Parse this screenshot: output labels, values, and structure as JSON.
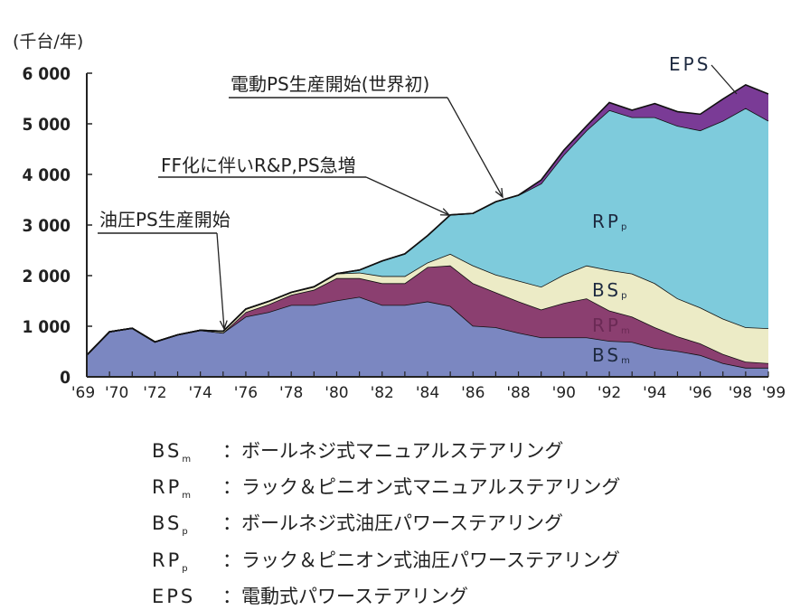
{
  "chart_data": {
    "type": "area",
    "stacked": true,
    "unit_label": "(千台/年)",
    "xlabel": "",
    "ylabel": "",
    "ylim": [
      0,
      6000
    ],
    "yticks": [
      "0",
      "1 000",
      "2 000",
      "3 000",
      "4 000",
      "5 000",
      "6 000"
    ],
    "ytick_values": [
      0,
      1000,
      2000,
      3000,
      4000,
      5000,
      6000
    ],
    "xtick_labels": [
      {
        "year": 1969,
        "label": "'69"
      },
      {
        "year": 1970,
        "label": "'70"
      },
      {
        "year": 1972,
        "label": "'72"
      },
      {
        "year": 1974,
        "label": "'74"
      },
      {
        "year": 1976,
        "label": "'76"
      },
      {
        "year": 1978,
        "label": "'78"
      },
      {
        "year": 1980,
        "label": "'80"
      },
      {
        "year": 1982,
        "label": "'82"
      },
      {
        "year": 1984,
        "label": "'84"
      },
      {
        "year": 1986,
        "label": "'86"
      },
      {
        "year": 1988,
        "label": "'88"
      },
      {
        "year": 1990,
        "label": "'90"
      },
      {
        "year": 1992,
        "label": "'92"
      },
      {
        "year": 1994,
        "label": "'94"
      },
      {
        "year": 1996,
        "label": "'96"
      },
      {
        "year": 1998,
        "label": "'98"
      },
      {
        "year": 1999,
        "label": "'99"
      }
    ],
    "x": [
      1969,
      1970,
      1971,
      1972,
      1973,
      1974,
      1975,
      1976,
      1977,
      1978,
      1979,
      1980,
      1981,
      1982,
      1983,
      1984,
      1985,
      1986,
      1987,
      1988,
      1989,
      1990,
      1991,
      1992,
      1993,
      1994,
      1995,
      1996,
      1997,
      1998,
      1999
    ],
    "grid": false,
    "series": [
      {
        "name": "BS",
        "sub": "m",
        "color": "#7b87c1",
        "values": [
          430,
          890,
          960,
          690,
          830,
          920,
          870,
          1190,
          1280,
          1420,
          1420,
          1510,
          1580,
          1420,
          1420,
          1490,
          1400,
          1010,
          980,
          870,
          780,
          780,
          780,
          710,
          690,
          570,
          510,
          430,
          270,
          180,
          180
        ]
      },
      {
        "name": "RP",
        "sub": "m",
        "color": "#8b3f70",
        "values": [
          0,
          0,
          0,
          0,
          0,
          0,
          0,
          90,
          150,
          200,
          300,
          440,
          370,
          430,
          430,
          680,
          800,
          840,
          690,
          620,
          550,
          680,
          770,
          600,
          500,
          410,
          290,
          230,
          180,
          120,
          90
        ]
      },
      {
        "name": "BS",
        "sub": "p",
        "color": "#ecebc6",
        "values": [
          0,
          0,
          0,
          0,
          0,
          0,
          30,
          60,
          60,
          50,
          60,
          90,
          110,
          140,
          140,
          90,
          230,
          350,
          350,
          410,
          450,
          560,
          650,
          800,
          850,
          870,
          750,
          710,
          700,
          680,
          690
        ]
      },
      {
        "name": "RP",
        "sub": "p",
        "color": "#7ecbdc",
        "values": [
          0,
          0,
          0,
          0,
          0,
          0,
          0,
          0,
          0,
          0,
          0,
          0,
          50,
          300,
          440,
          530,
          770,
          1030,
          1440,
          1690,
          2040,
          2370,
          2670,
          3160,
          3090,
          3280,
          3410,
          3500,
          3910,
          4330,
          4100
        ]
      },
      {
        "name": "EPS",
        "sub": "",
        "color": "#7a3b96",
        "values": [
          0,
          0,
          0,
          0,
          0,
          0,
          0,
          0,
          0,
          0,
          0,
          0,
          0,
          0,
          0,
          0,
          0,
          0,
          0,
          0,
          70,
          90,
          90,
          150,
          140,
          270,
          280,
          320,
          430,
          460,
          530
        ]
      }
    ],
    "annotations": [
      {
        "text": "油圧PS生産開始",
        "year": 1975
      },
      {
        "text": "FF化に伴いR&P,PS急増",
        "year": 1985
      },
      {
        "text": "電動PS生産開始(世界初)",
        "year": 1988
      }
    ],
    "legend": [
      {
        "key": "BS",
        "sub": "m",
        "desc": "：ボールネジ式マニュアルステアリング"
      },
      {
        "key": "RP",
        "sub": "m",
        "desc": "：ラック＆ピニオン式マニュアルステアリング"
      },
      {
        "key": "BS",
        "sub": "p",
        "desc": "：ボールネジ式油圧パワーステアリング"
      },
      {
        "key": "RP",
        "sub": "p",
        "desc": "：ラック＆ピニオン式油圧パワーステアリング"
      },
      {
        "key": "EPS",
        "sub": "",
        "desc": "：電動式パワーステアリング"
      }
    ],
    "legend_placement": "bottom"
  }
}
